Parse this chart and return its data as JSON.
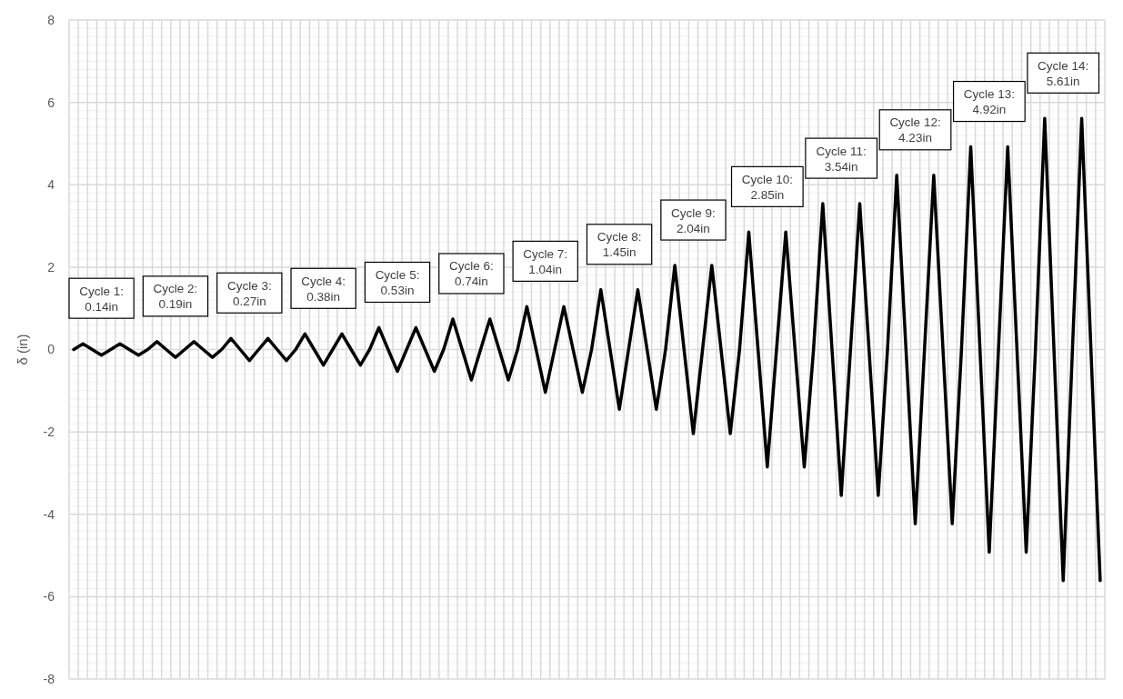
{
  "chart_data": {
    "type": "line",
    "ylabel": "δ (in)",
    "ylim": [
      -8,
      8
    ],
    "yticks": [
      -8,
      -6,
      -4,
      -2,
      0,
      2,
      4,
      6,
      8
    ],
    "grid": true,
    "tick_labels": "y",
    "color": "#000000",
    "categories": [
      null,
      null,
      null,
      null,
      null,
      null,
      null,
      null,
      null,
      null,
      null,
      null,
      null,
      null,
      null,
      null,
      null,
      null,
      null,
      null,
      null,
      null,
      null,
      null,
      null,
      null,
      null,
      null,
      null,
      null,
      null,
      null,
      null,
      null,
      null,
      null,
      null,
      null,
      null,
      null,
      null,
      null,
      null,
      null,
      null,
      null,
      null,
      null,
      null,
      null,
      null,
      null,
      null,
      null,
      null,
      null,
      null,
      null,
      null,
      null,
      null,
      null,
      null,
      null,
      null,
      null,
      null,
      null,
      null,
      null,
      null,
      null,
      null,
      null,
      null,
      null,
      null,
      null,
      null,
      null,
      null,
      null,
      null,
      null,
      null,
      null,
      null,
      null,
      null,
      null,
      null,
      null,
      null,
      null,
      null,
      null,
      null,
      null,
      null,
      null,
      null,
      null,
      null,
      null,
      null,
      null,
      null,
      null,
      null,
      null,
      null,
      null
    ],
    "values": [
      0,
      0.14,
      0,
      -0.14,
      0,
      0.14,
      0,
      -0.14,
      0,
      0.19,
      0,
      -0.19,
      0,
      0.19,
      0,
      -0.19,
      0,
      0.27,
      0,
      -0.27,
      0,
      0.27,
      0,
      -0.27,
      0,
      0.38,
      0,
      -0.38,
      0,
      0.38,
      0,
      -0.38,
      0,
      0.53,
      0,
      -0.53,
      0,
      0.53,
      0,
      -0.53,
      0,
      0.74,
      0,
      -0.74,
      0,
      0.74,
      0,
      -0.74,
      0,
      1.04,
      0,
      -1.04,
      0,
      1.04,
      0,
      -1.04,
      0,
      1.45,
      0,
      -1.45,
      0,
      1.45,
      0,
      -1.45,
      0,
      2.04,
      0,
      -2.04,
      0,
      2.04,
      0,
      -2.04,
      0,
      2.85,
      0,
      -2.85,
      0,
      2.85,
      0,
      -2.85,
      0,
      3.54,
      0,
      -3.54,
      0,
      3.54,
      0,
      -3.54,
      0,
      4.23,
      0,
      -4.23,
      0,
      4.23,
      0,
      -4.23,
      0,
      4.92,
      0,
      -4.92,
      0,
      4.92,
      0,
      -4.92,
      0,
      5.61,
      0,
      -5.61,
      0,
      5.61,
      0,
      -5.61
    ],
    "annotations": [
      "Cycle 1:\n0.14in",
      "Cycle 2:\n0.19in",
      "Cycle 3:\n0.27in",
      "Cycle 4:\n0.38in",
      "Cycle 5:\n0.53in",
      "Cycle 6:\n0.74in",
      "Cycle 7:\n1.04in",
      "Cycle 8:\n1.45in",
      "Cycle 9:\n2.04in",
      "Cycle 10:\n2.85in",
      "Cycle 11:\n3.54in",
      "Cycle 12:\n4.23in",
      "Cycle 13:\n4.92in",
      "Cycle 14:\n5.61in"
    ]
  }
}
